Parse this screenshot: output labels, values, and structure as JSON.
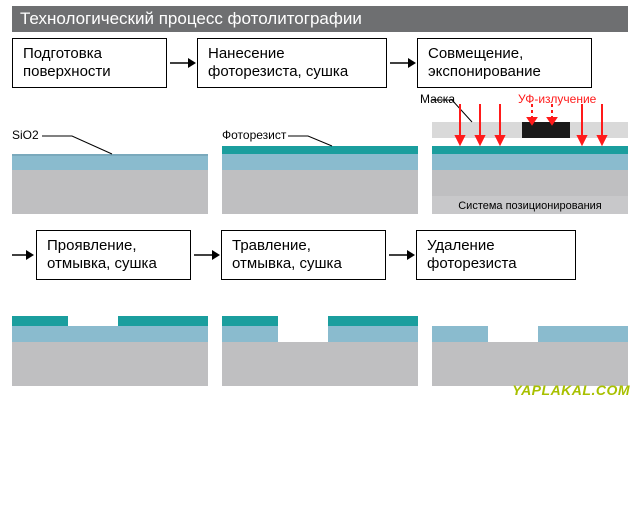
{
  "title": "Технологический процесс фотолитографии",
  "steps_row1": [
    {
      "label": "Подготовка\nповерхности"
    },
    {
      "label": "Нанесение\nфоторезиста, сушка"
    },
    {
      "label": "Совмещение,\nэкспонирование"
    }
  ],
  "steps_row2": [
    {
      "label": "Проявление,\nотмывка, сушка"
    },
    {
      "label": "Травление,\nотмывка, сушка"
    },
    {
      "label": "Удаление\nфоторезиста"
    }
  ],
  "labels": {
    "sio2": "SiO2",
    "photoresist": "Фоторезист",
    "mask": "Маска",
    "uv": "УФ-излучение",
    "positioning": "Система позиционирования"
  },
  "colors": {
    "substrate": "#bfbfc1",
    "sio2": "#8abbce",
    "sio2_edge": "#7aa9bc",
    "photoresist": "#1a9e9e",
    "mask_light": "#d9d9d9",
    "mask_dark": "#1a1a1a",
    "arrow_red": "#ff1a1a",
    "title_bg": "#6e6f71",
    "text": "#000000",
    "positioning_bg": "#c8c8ca",
    "uv_text": "#ff1a1a",
    "leader": "#000000"
  },
  "watermark": "YAPLAKAL.COM",
  "layout": {
    "diagram_w": 196,
    "diagram_h": 120,
    "substrate_h": 44,
    "sio2_h": 16,
    "resist_h": 8,
    "step_box_w": [
      150,
      180,
      170
    ]
  }
}
